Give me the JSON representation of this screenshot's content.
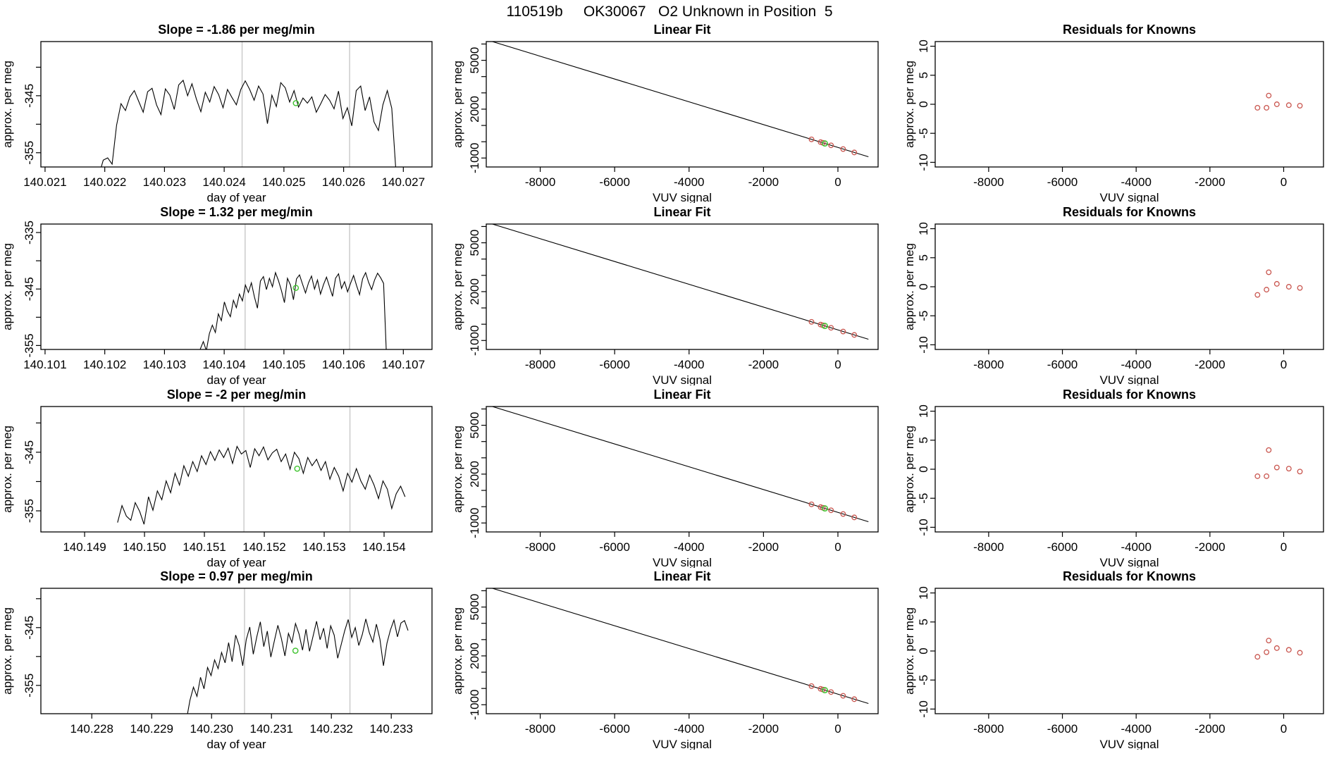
{
  "header": {
    "title": "110519b     OK30067   O2 Unknown in Position  5"
  },
  "palette": {
    "trace": "#000000",
    "fit_line": "#000000",
    "known_point": "#c9564f",
    "unknown_point": "#3fc32f",
    "window_line": "#c8c8c8",
    "axis": "#000000"
  },
  "chart_data": {
    "layout": "4 rows x 3 columns",
    "ylabel": "approx. per meg",
    "timeseries_xlabel": "day of year",
    "vuv_xlabel": "VUV signal",
    "linear_fit": {
      "type": "line+scatter",
      "title": "Linear Fit",
      "xlim": [
        -9450,
        1080
      ],
      "ylim": [
        -1550,
        6150
      ],
      "xticks": [
        -8000,
        -6000,
        -4000,
        -2000,
        0
      ],
      "xtick_labels": [
        "-8000",
        "-6000",
        "-4000",
        "-2000",
        "0"
      ],
      "yticks": [
        -1000,
        0,
        1000,
        2000,
        3000,
        4000,
        5000,
        6000
      ],
      "ytick_labels": [
        "-1000",
        "",
        "",
        "2000",
        "",
        "",
        "5000",
        ""
      ],
      "fit_line": {
        "slope": -0.7,
        "intercept": -350,
        "x_draw": [
          -9280,
          820
        ]
      },
      "known_x": [
        -710,
        -465,
        -405,
        -185,
        140,
        440
      ],
      "unknown_x": -350
    },
    "residuals": {
      "type": "scatter",
      "title": "Residuals for Knowns",
      "xlim": [
        -9450,
        1080
      ],
      "ylim": [
        -10.8,
        10.8
      ],
      "xticks": [
        -8000,
        -6000,
        -4000,
        -2000,
        0
      ],
      "xtick_labels": [
        "-8000",
        "-6000",
        "-4000",
        "-2000",
        "0"
      ],
      "yticks": [
        -10,
        -5,
        0,
        5,
        10
      ],
      "ytick_labels": [
        "-10",
        "-5",
        "0",
        "5",
        "10"
      ],
      "points_x": [
        -710,
        -465,
        -405,
        -185,
        140,
        440
      ]
    },
    "rows": [
      {
        "slope_label": "Slope =  -1.86  per meg/min",
        "slope_value": -1.86,
        "timeseries": {
          "type": "line",
          "xlim": [
            140.02093,
            140.02748
          ],
          "ylim": [
            -357.5,
            -335.5
          ],
          "xticks": [
            140.021,
            140.022,
            140.023,
            140.024,
            140.025,
            140.026,
            140.027
          ],
          "xtick_labels": [
            "140.021",
            "140.022",
            "140.023",
            "140.024",
            "140.025",
            "140.026",
            "140.027"
          ],
          "yticks": [
            -355,
            -350,
            -345,
            -340
          ],
          "ytick_labels": [
            "-355",
            "",
            "-345",
            ""
          ],
          "window_lines": [
            140.0243,
            140.0261
          ],
          "mean_marker": {
            "x": 140.0252,
            "y": -346.3
          },
          "trace": {
            "x_start": 140.0219,
            "x_end": 140.02688,
            "y": [
              -359.0,
              -356.3,
              -355.9,
              -357.0,
              -350.2,
              -346.4,
              -347.6,
              -345.2,
              -344.1,
              -346.0,
              -347.9,
              -344.3,
              -343.7,
              -346.6,
              -348.3,
              -343.8,
              -344.9,
              -347.4,
              -343.1,
              -342.3,
              -345.0,
              -342.9,
              -345.6,
              -347.8,
              -344.4,
              -346.1,
              -343.4,
              -344.8,
              -347.1,
              -343.9,
              -345.3,
              -346.6,
              -343.9,
              -342.4,
              -343.9,
              -345.8,
              -343.3,
              -344.7,
              -349.9,
              -344.9,
              -346.9,
              -342.7,
              -343.6,
              -346.1,
              -344.1,
              -347.0,
              -345.4,
              -346.3,
              -345.2,
              -347.9,
              -346.4,
              -344.8,
              -345.8,
              -347.3,
              -344.2,
              -349.0,
              -347.1,
              -350.3,
              -344.1,
              -343.3,
              -347.6,
              -345.2,
              -349.6,
              -351.1,
              -346.6,
              -344.1,
              -347.2,
              -359.0
            ]
          }
        },
        "residuals_y": [
          -0.6,
          -0.6,
          1.5,
          0.0,
          -0.15,
          -0.25
        ]
      },
      {
        "slope_label": "Slope =  1.32  per meg/min",
        "slope_value": 1.32,
        "timeseries": {
          "type": "line",
          "xlim": [
            140.10093,
            140.10748
          ],
          "ylim": [
            -355.7,
            -333.5
          ],
          "xticks": [
            140.101,
            140.102,
            140.103,
            140.104,
            140.105,
            140.106,
            140.107
          ],
          "xtick_labels": [
            "140.101",
            "140.102",
            "140.103",
            "140.104",
            "140.105",
            "140.106",
            "140.107"
          ],
          "yticks": [
            -355,
            -350,
            -345,
            -340,
            -335
          ],
          "ytick_labels": [
            "-355",
            "",
            "-345",
            "",
            "-335"
          ],
          "window_lines": [
            140.10435,
            140.1061
          ],
          "mean_marker": {
            "x": 140.1052,
            "y": -344.8
          },
          "trace": {
            "x_start": 140.10355,
            "x_end": 140.10672,
            "y": [
              -358.5,
              -355.6,
              -354.3,
              -355.9,
              -352.9,
              -351.4,
              -352.7,
              -349.4,
              -350.6,
              -347.3,
              -348.9,
              -349.9,
              -347.0,
              -348.3,
              -345.9,
              -347.1,
              -344.3,
              -345.6,
              -343.9,
              -346.4,
              -348.4,
              -343.6,
              -342.8,
              -345.1,
              -343.1,
              -344.6,
              -342.1,
              -343.5,
              -345.3,
              -347.4,
              -343.1,
              -344.3,
              -346.9,
              -343.2,
              -342.5,
              -344.1,
              -345.7,
              -343.9,
              -342.7,
              -345.0,
              -343.4,
              -345.9,
              -344.2,
              -342.9,
              -344.6,
              -346.3,
              -343.1,
              -342.3,
              -344.9,
              -343.7,
              -345.5,
              -344.0,
              -342.6,
              -344.4,
              -346.0,
              -343.2,
              -342.1,
              -343.8,
              -345.1,
              -343.4,
              -342.2,
              -343.0,
              -344.0,
              -357.5
            ]
          }
        },
        "residuals_y": [
          -1.4,
          -0.5,
          2.5,
          0.5,
          0.0,
          -0.2
        ]
      },
      {
        "slope_label": "Slope =  -2  per meg/min",
        "slope_value": -2,
        "timeseries": {
          "type": "line",
          "xlim": [
            140.14827,
            140.1548
          ],
          "ylim": [
            -358.6,
            -337.2
          ],
          "xticks": [
            140.149,
            140.15,
            140.151,
            140.152,
            140.153,
            140.154
          ],
          "xtick_labels": [
            "140.149",
            "140.150",
            "140.151",
            "140.152",
            "140.153",
            "140.154"
          ],
          "yticks": [
            -355,
            -350,
            -345,
            -340
          ],
          "ytick_labels": [
            "-355",
            "",
            "-345",
            ""
          ],
          "window_lines": [
            140.15166,
            140.15343
          ],
          "mean_marker": {
            "x": 140.15255,
            "y": -347.8
          },
          "trace": {
            "x_start": 140.14955,
            "x_end": 140.15435,
            "y": [
              -357.0,
              -354.1,
              -355.9,
              -356.6,
              -353.6,
              -355.1,
              -357.3,
              -352.6,
              -354.9,
              -351.6,
              -353.1,
              -349.9,
              -351.9,
              -348.6,
              -350.6,
              -347.3,
              -349.1,
              -346.6,
              -348.3,
              -345.6,
              -347.1,
              -344.9,
              -346.4,
              -344.6,
              -345.9,
              -344.3,
              -346.9,
              -344.0,
              -345.3,
              -344.7,
              -347.6,
              -344.4,
              -345.6,
              -344.1,
              -346.3,
              -345.1,
              -344.5,
              -346.6,
              -345.3,
              -347.9,
              -345.0,
              -346.1,
              -348.6,
              -345.9,
              -347.3,
              -346.2,
              -348.1,
              -346.6,
              -349.6,
              -347.6,
              -349.1,
              -351.6,
              -348.6,
              -350.1,
              -347.8,
              -349.9,
              -351.3,
              -348.9,
              -350.6,
              -352.9,
              -349.9,
              -351.3,
              -354.6,
              -352.1,
              -350.8,
              -352.6
            ]
          }
        },
        "residuals_y": [
          -1.2,
          -1.2,
          3.3,
          0.3,
          0.1,
          -0.4
        ]
      },
      {
        "slope_label": "Slope =  0.97  per meg/min",
        "slope_value": 0.97,
        "timeseries": {
          "type": "line",
          "xlim": [
            140.22715,
            140.23368
          ],
          "ylim": [
            -359.9,
            -338.2
          ],
          "xticks": [
            140.228,
            140.229,
            140.23,
            140.231,
            140.232,
            140.233
          ],
          "xtick_labels": [
            "140.228",
            "140.229",
            "140.230",
            "140.231",
            "140.232",
            "140.233"
          ],
          "yticks": [
            -355,
            -350,
            -345,
            -340
          ],
          "ytick_labels": [
            "-355",
            "",
            "-345",
            ""
          ],
          "window_lines": [
            140.23055,
            140.23231
          ],
          "mean_marker": {
            "x": 140.2314,
            "y": -349.0
          },
          "trace": {
            "x_start": 140.22958,
            "x_end": 140.23328,
            "y": [
              -361.0,
              -357.6,
              -355.3,
              -356.9,
              -353.6,
              -355.6,
              -351.9,
              -353.3,
              -350.6,
              -352.1,
              -349.3,
              -351.1,
              -347.6,
              -350.9,
              -346.3,
              -348.1,
              -351.6,
              -347.1,
              -344.9,
              -349.6,
              -346.6,
              -344.0,
              -348.3,
              -345.6,
              -350.1,
              -347.3,
              -344.6,
              -346.9,
              -349.9,
              -346.0,
              -347.6,
              -344.3,
              -346.1,
              -348.9,
              -345.3,
              -349.1,
              -346.5,
              -343.9,
              -347.1,
              -345.1,
              -348.6,
              -344.7,
              -346.3,
              -350.3,
              -347.9,
              -345.5,
              -343.6,
              -346.7,
              -345.0,
              -348.1,
              -346.2,
              -343.5,
              -345.9,
              -347.5,
              -344.4,
              -347.0,
              -351.6,
              -347.7,
              -345.4,
              -343.7,
              -346.6,
              -344.2,
              -343.8,
              -345.5
            ]
          }
        },
        "residuals_y": [
          -1.0,
          -0.2,
          1.8,
          0.5,
          0.2,
          -0.3
        ]
      }
    ]
  }
}
